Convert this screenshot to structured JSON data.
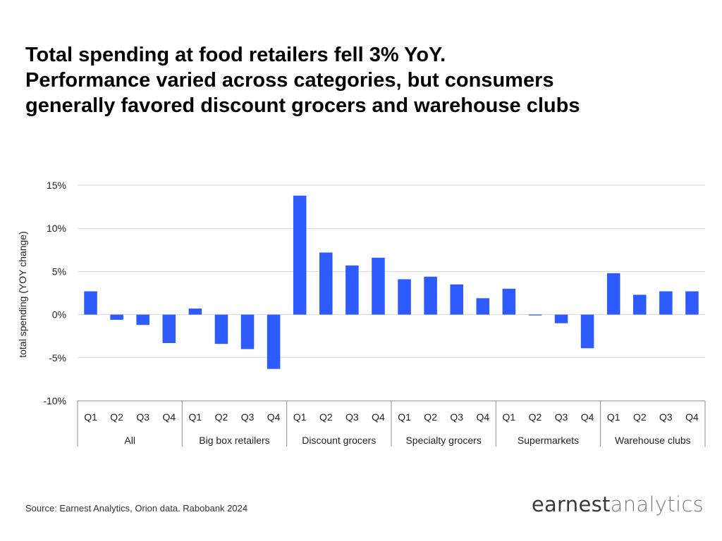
{
  "title_lines": [
    "Total spending at food retailers fell 3% YoY.",
    "Performance varied across categories, but consumers",
    "generally favored discount grocers and warehouse clubs"
  ],
  "source": "Source: Earnest Analytics, Orion data. Rabobank 2024",
  "logo": {
    "word1": "earnest",
    "word2": "analytics"
  },
  "colors": {
    "bar": "#2d5bff",
    "grid": "#d9d9d9",
    "axis": "#8c8c8c"
  },
  "chart_data": {
    "type": "bar",
    "title": "",
    "xlabel": "",
    "ylabel": "total spending (YOY change)",
    "ylim": [
      -10,
      15
    ],
    "yticks": [
      15,
      10,
      5,
      0,
      -5,
      -10
    ],
    "ytick_labels": [
      "15%",
      "10%",
      "5%",
      "0%",
      "-5%",
      "-10%"
    ],
    "grid": true,
    "groups": [
      {
        "name": "All",
        "categories": [
          "Q1",
          "Q2",
          "Q3",
          "Q4"
        ],
        "values": [
          2.7,
          -0.6,
          -1.2,
          -3.3
        ]
      },
      {
        "name": "Big box retailers",
        "categories": [
          "Q1",
          "Q2",
          "Q3",
          "Q4"
        ],
        "values": [
          0.7,
          -3.4,
          -4.0,
          -6.3
        ]
      },
      {
        "name": "Discount grocers",
        "categories": [
          "Q1",
          "Q2",
          "Q3",
          "Q4"
        ],
        "values": [
          13.8,
          7.2,
          5.7,
          6.6
        ]
      },
      {
        "name": "Specialty grocers",
        "categories": [
          "Q1",
          "Q2",
          "Q3",
          "Q4"
        ],
        "values": [
          4.1,
          4.4,
          3.5,
          1.9
        ]
      },
      {
        "name": "Supermarkets",
        "categories": [
          "Q1",
          "Q2",
          "Q3",
          "Q4"
        ],
        "values": [
          3.0,
          -0.1,
          -1.0,
          -3.9
        ]
      },
      {
        "name": "Warehouse clubs",
        "categories": [
          "Q1",
          "Q2",
          "Q3",
          "Q4"
        ],
        "values": [
          4.8,
          2.3,
          2.7,
          2.7
        ]
      }
    ]
  }
}
